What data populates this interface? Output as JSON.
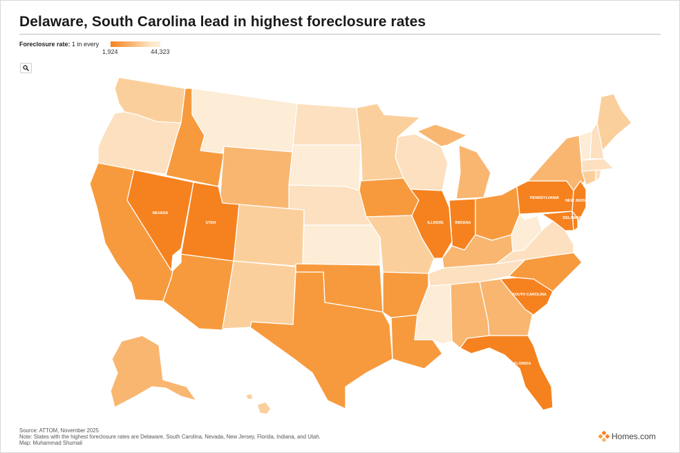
{
  "title": "Delaware, South Carolina lead in highest foreclosure rates",
  "legend": {
    "label_bold": "Foreclosure rate:",
    "label_rest": "1 in every",
    "min": "1,924",
    "max": "44,323"
  },
  "map_labels": {
    "nevada": "NEVADA",
    "utah": "UTAH",
    "illinois": "ILLINOIS",
    "indiana": "INDIANA",
    "pennsylvania": "PENNSYLVANIA",
    "new_jersey": "NEW JERSEY",
    "delaware": "DELAWARE",
    "south_carolina": "SOUTH CAROLINA",
    "florida": "FLORIDA"
  },
  "colors": {
    "darkest": "#f5821f",
    "dark": "#f79a3d",
    "medium": "#f9b670",
    "light": "#fbcf9c",
    "lighter": "#fce0bf",
    "lightest": "#fdecd6"
  },
  "search_button_icon": "search-icon",
  "footer": {
    "source": "Source: ATTOM, November 2025",
    "note": "Note: States with the highest foreclosure rates are Delaware, South Carolina, Nevada, New Jersey, Florida, Indiana, and Utah.",
    "credit": "Map: Muhammad Shumail"
  },
  "brand": {
    "logo_icon": "homes-logo-icon",
    "name": "Homes.com"
  }
}
